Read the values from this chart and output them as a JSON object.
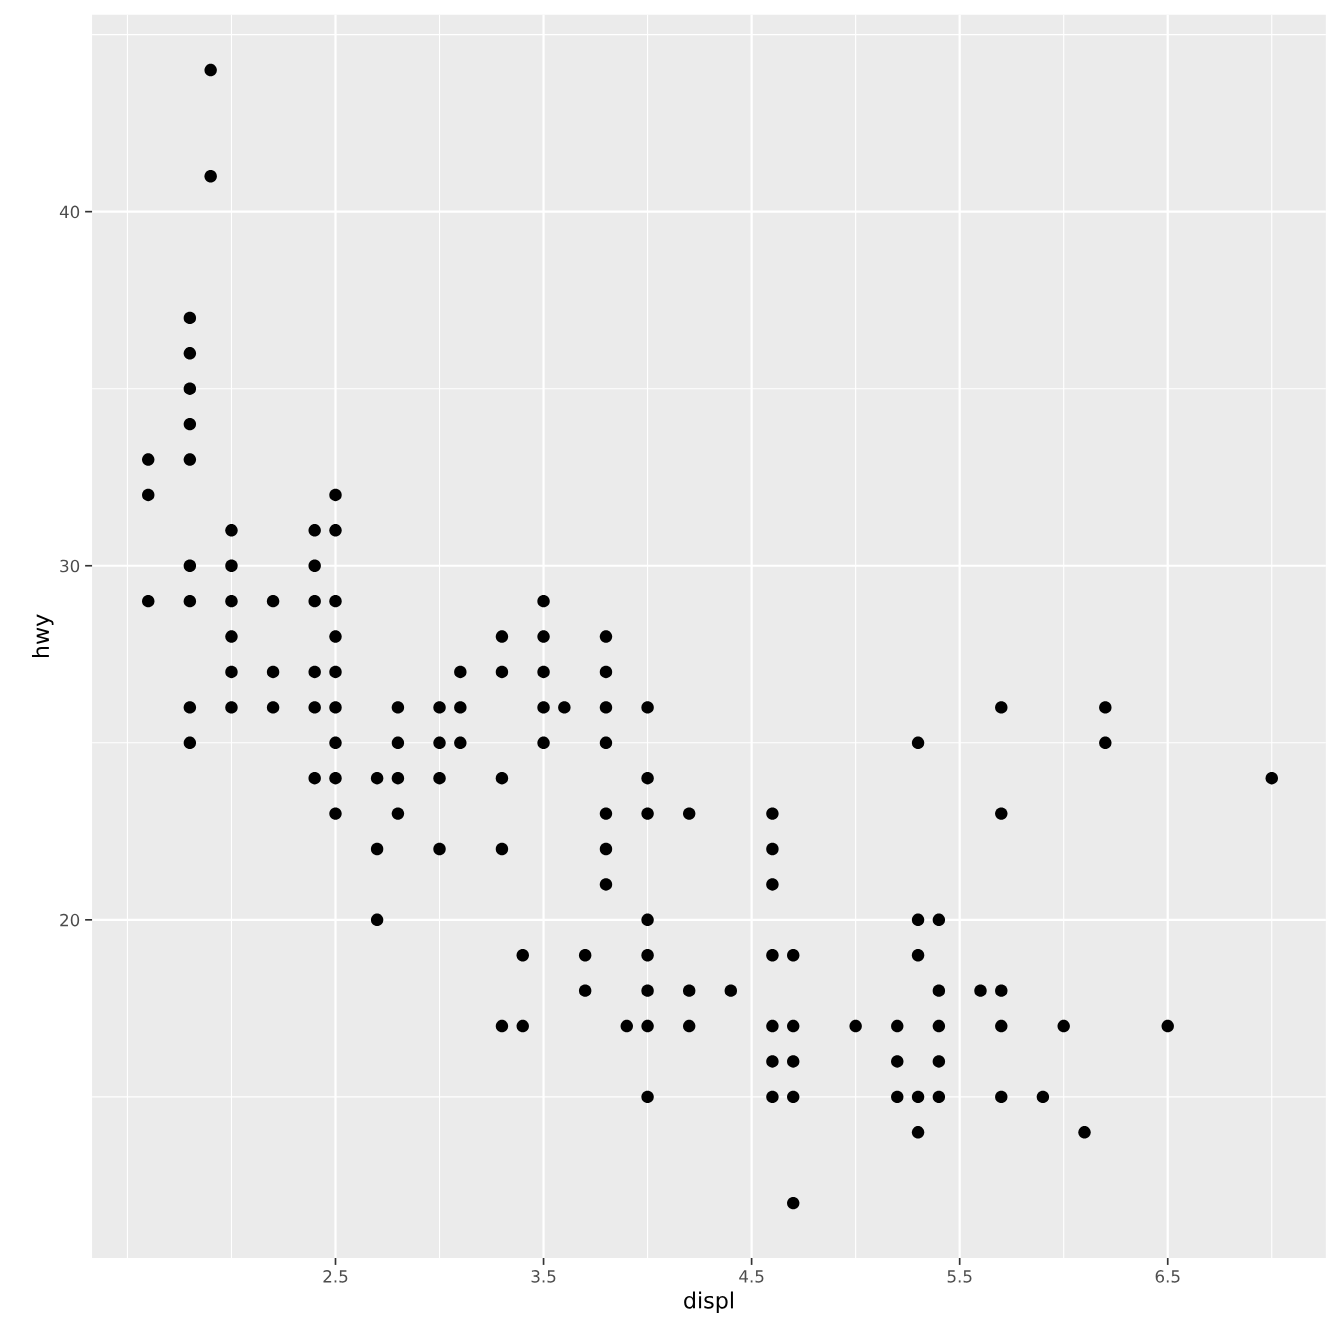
{
  "chart_data": {
    "type": "scatter",
    "xlabel": "displ",
    "ylabel": "hwy",
    "x": [
      1.6,
      1.6,
      1.6,
      1.8,
      1.8,
      1.8,
      1.8,
      1.8,
      1.8,
      1.8,
      1.8,
      1.8,
      1.9,
      1.9,
      2.0,
      2.0,
      2.0,
      2.0,
      2.0,
      2.0,
      2.2,
      2.2,
      2.2,
      2.4,
      2.4,
      2.4,
      2.4,
      2.4,
      2.4,
      2.5,
      2.5,
      2.5,
      2.5,
      2.5,
      2.5,
      2.5,
      2.5,
      2.5,
      2.7,
      2.7,
      2.7,
      2.8,
      2.8,
      2.8,
      2.8,
      3.0,
      3.0,
      3.0,
      3.0,
      3.1,
      3.1,
      3.1,
      3.3,
      3.3,
      3.3,
      3.3,
      3.3,
      3.4,
      3.4,
      3.5,
      3.5,
      3.5,
      3.5,
      3.5,
      3.6,
      3.7,
      3.7,
      3.8,
      3.8,
      3.8,
      3.8,
      3.8,
      3.8,
      3.8,
      3.9,
      4.0,
      4.0,
      4.0,
      4.0,
      4.0,
      4.0,
      4.0,
      4.0,
      4.2,
      4.2,
      4.2,
      4.4,
      4.6,
      4.6,
      4.6,
      4.6,
      4.6,
      4.6,
      4.6,
      4.7,
      4.7,
      4.7,
      4.7,
      4.7,
      5.0,
      5.2,
      5.2,
      5.2,
      5.3,
      5.3,
      5.3,
      5.3,
      5.3,
      5.4,
      5.4,
      5.4,
      5.4,
      5.4,
      5.6,
      5.7,
      5.7,
      5.7,
      5.7,
      5.7,
      5.9,
      6.0,
      6.1,
      6.2,
      6.2,
      6.5,
      7.0
    ],
    "values": [
      33,
      32,
      29,
      37,
      36,
      35,
      34,
      33,
      30,
      29,
      26,
      25,
      44,
      41,
      31,
      30,
      29,
      28,
      27,
      26,
      29,
      27,
      26,
      31,
      30,
      29,
      27,
      26,
      24,
      32,
      31,
      29,
      28,
      27,
      26,
      25,
      24,
      23,
      24,
      22,
      20,
      26,
      25,
      24,
      23,
      26,
      25,
      24,
      22,
      27,
      26,
      25,
      28,
      27,
      24,
      22,
      17,
      19,
      17,
      29,
      28,
      27,
      26,
      25,
      26,
      19,
      18,
      28,
      27,
      26,
      25,
      23,
      22,
      21,
      17,
      26,
      24,
      23,
      20,
      19,
      18,
      17,
      15,
      23,
      18,
      17,
      18,
      23,
      22,
      21,
      19,
      17,
      16,
      15,
      19,
      17,
      16,
      15,
      12,
      17,
      17,
      16,
      15,
      25,
      20,
      19,
      15,
      14,
      20,
      18,
      17,
      16,
      15,
      18,
      26,
      23,
      18,
      17,
      15,
      15,
      17,
      14,
      26,
      25,
      17,
      24
    ],
    "color": "#000000",
    "marker": "circle",
    "xlim": [
      1.33,
      7.26
    ],
    "ylim": [
      10.45,
      45.56
    ],
    "xticks": [
      2.5,
      3.5,
      4.5,
      5.5,
      6.5
    ],
    "yticks": [
      20,
      30,
      40
    ],
    "grid": true
  }
}
